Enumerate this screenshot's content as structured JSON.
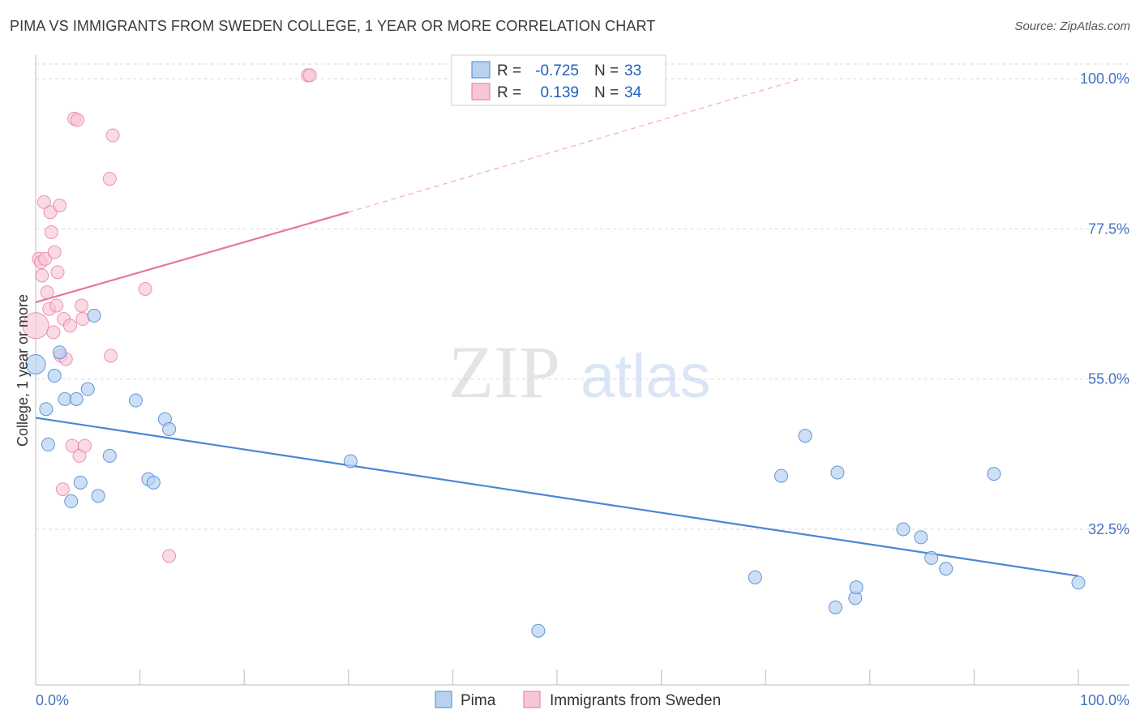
{
  "title": "PIMA VS IMMIGRANTS FROM SWEDEN COLLEGE, 1 YEAR OR MORE CORRELATION CHART",
  "source": "Source: ZipAtlas.com",
  "watermark": {
    "zip": "ZIP",
    "atlas": "atlas"
  },
  "legend_top": {
    "pima": {
      "r_label": "R =",
      "r_value": "-0.725",
      "n_label": "N =",
      "n_value": "33"
    },
    "sweden": {
      "r_label": "R =",
      "r_value": "0.139",
      "n_label": "N =",
      "n_value": "34"
    }
  },
  "legend_bottom": {
    "pima": "Pima",
    "sweden": "Immigrants from Sweden"
  },
  "chart_data": {
    "type": "scatter",
    "title": "PIMA VS IMMIGRANTS FROM SWEDEN COLLEGE, 1 YEAR OR MORE CORRELATION CHART",
    "xlabel": "",
    "ylabel": "College, 1 year or more",
    "xlim": [
      0,
      100
    ],
    "ylim": [
      12.5,
      102.5
    ],
    "x_tick_labels": [
      "0.0%",
      "100.0%"
    ],
    "y_ticks": [
      32.5,
      55.0,
      77.5,
      100.0
    ],
    "y_tick_labels": [
      "32.5%",
      "55.0%",
      "77.5%",
      "100.0%"
    ],
    "colors": {
      "pima": "#4a86d4",
      "pima_fill": "#b8d1f0",
      "sweden": "#e8749a",
      "sweden_fill": "#f7c6d6",
      "grid": "#d9d9d9"
    },
    "series": [
      {
        "name": "Pima",
        "r": -0.725,
        "n": 33,
        "trend": {
          "x": [
            0,
            100
          ],
          "y": [
            49.2,
            25.5
          ]
        },
        "points": [
          [
            0.0,
            57.2
          ],
          [
            1.0,
            50.5
          ],
          [
            1.2,
            45.2
          ],
          [
            1.8,
            55.5
          ],
          [
            2.3,
            59.0
          ],
          [
            2.8,
            52.0
          ],
          [
            3.4,
            36.7
          ],
          [
            3.9,
            52.0
          ],
          [
            4.3,
            39.5
          ],
          [
            5.0,
            53.5
          ],
          [
            5.6,
            64.5
          ],
          [
            6.0,
            37.5
          ],
          [
            7.1,
            43.5
          ],
          [
            9.6,
            51.8
          ],
          [
            10.8,
            40.0
          ],
          [
            11.3,
            39.5
          ],
          [
            12.4,
            49.0
          ],
          [
            12.8,
            47.5
          ],
          [
            30.2,
            42.7
          ],
          [
            48.2,
            17.3
          ],
          [
            69.0,
            25.3
          ],
          [
            71.5,
            40.5
          ],
          [
            73.8,
            46.5
          ],
          [
            76.7,
            20.8
          ],
          [
            76.9,
            41.0
          ],
          [
            78.6,
            22.2
          ],
          [
            78.7,
            23.8
          ],
          [
            83.2,
            32.5
          ],
          [
            84.9,
            31.3
          ],
          [
            85.9,
            28.2
          ],
          [
            87.3,
            26.6
          ],
          [
            91.9,
            40.8
          ],
          [
            100.0,
            24.5
          ]
        ]
      },
      {
        "name": "Immigrants from Sweden",
        "r": 0.139,
        "n": 34,
        "trend_solid": {
          "x": [
            0,
            30.0
          ],
          "y": [
            66.5,
            80.0
          ]
        },
        "trend_dashed": {
          "x": [
            30.0,
            73.5
          ],
          "y": [
            80.0,
            100.0
          ]
        },
        "points": [
          [
            0.0,
            63.0
          ],
          [
            0.3,
            73.0
          ],
          [
            0.5,
            72.5
          ],
          [
            0.6,
            70.5
          ],
          [
            0.8,
            81.5
          ],
          [
            0.9,
            73.0
          ],
          [
            1.1,
            68.0
          ],
          [
            1.3,
            65.5
          ],
          [
            1.4,
            80.0
          ],
          [
            1.5,
            77.0
          ],
          [
            1.7,
            62.0
          ],
          [
            1.8,
            74.0
          ],
          [
            2.0,
            66.0
          ],
          [
            2.1,
            71.0
          ],
          [
            2.3,
            81.0
          ],
          [
            2.4,
            58.5
          ],
          [
            2.6,
            38.5
          ],
          [
            2.7,
            64.0
          ],
          [
            2.9,
            58.0
          ],
          [
            3.3,
            63.0
          ],
          [
            3.5,
            45.0
          ],
          [
            3.7,
            94.0
          ],
          [
            4.0,
            93.8
          ],
          [
            4.2,
            43.5
          ],
          [
            4.4,
            66.0
          ],
          [
            4.5,
            64.0
          ],
          [
            4.7,
            45.0
          ],
          [
            7.1,
            85.0
          ],
          [
            7.2,
            58.5
          ],
          [
            7.4,
            91.5
          ],
          [
            10.5,
            68.5
          ],
          [
            12.8,
            28.5
          ],
          [
            26.1,
            100.5
          ],
          [
            26.3,
            100.5
          ]
        ]
      }
    ]
  }
}
